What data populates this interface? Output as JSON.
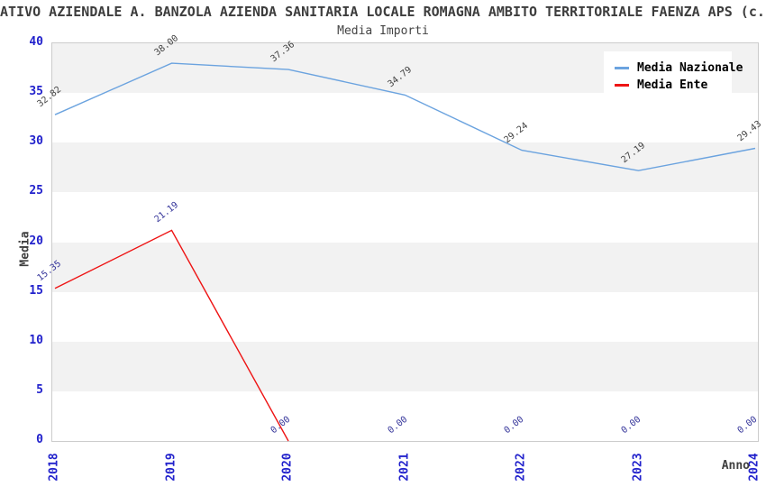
{
  "chart_data": {
    "type": "line",
    "title": "ATIVO AZIENDALE A. BANZOLA AZIENDA SANITARIA LOCALE ROMAGNA AMBITO TERRITORIALE FAENZA APS (c.f",
    "subtitle": "Media Importi",
    "xlabel": "Anno",
    "ylabel": "Media",
    "categories": [
      "2018",
      "2019",
      "2020",
      "2021",
      "2022",
      "2023",
      "2024"
    ],
    "series": [
      {
        "name": "Media Nazionale",
        "color": "#6BA3DF",
        "label_color": "#404040",
        "values": [
          32.82,
          38.0,
          37.36,
          34.79,
          29.24,
          27.19,
          29.43
        ],
        "line_end_index": 6
      },
      {
        "name": "Media Ente",
        "color": "#EE1414",
        "label_color": "#333399",
        "values": [
          15.35,
          21.19,
          0.0,
          0.0,
          0.0,
          0.0,
          0.0
        ],
        "line_end_index": 2
      }
    ],
    "ylim": [
      0,
      40
    ],
    "yticks": [
      40,
      35,
      30,
      25,
      20,
      15,
      10,
      5,
      0
    ],
    "legend_position": "top-right",
    "grid_band_colors": [
      "#F2F2F2",
      "#FFFFFF"
    ],
    "axis_tick_color": "#2222CC",
    "plot_border_color": "#CCCCCC",
    "value_label_decimals": 2
  }
}
